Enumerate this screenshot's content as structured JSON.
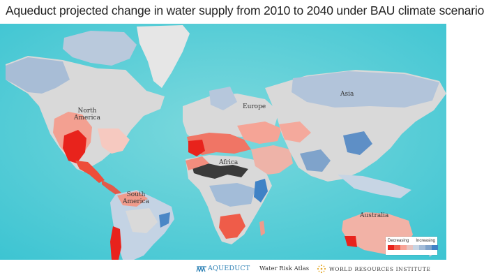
{
  "title": "Aqueduct projected change in water supply from 2010 to 2040 under BAU climate scenario",
  "map": {
    "region_labels": [
      {
        "id": "north-america",
        "text": "North\nAmerica"
      },
      {
        "id": "south-america",
        "text": "South\nAmerica"
      },
      {
        "id": "europe",
        "text": "Europe"
      },
      {
        "id": "africa",
        "text": "Africa"
      },
      {
        "id": "asia",
        "text": "Asia"
      },
      {
        "id": "australia",
        "text": "Australia"
      }
    ],
    "colors": {
      "ocean": "#5fd0d8",
      "land_no_data": "#dcdcdc",
      "arid_low_runoff": "#3a3a3a"
    }
  },
  "legend": {
    "decreasing_label": "Decreasing",
    "increasing_label": "Increasing",
    "scale_colors": [
      "#e8231c",
      "#f2604f",
      "#f7a396",
      "#e9c4c0",
      "#c7d5e4",
      "#a3bcd8",
      "#7fa3cb",
      "#3f82c6"
    ]
  },
  "footer": {
    "aqueduct_name": "AQUEDUCT",
    "aqueduct_sub": "Water Risk Atlas",
    "wri_name": "WORLD RESOURCES INSTITUTE"
  }
}
